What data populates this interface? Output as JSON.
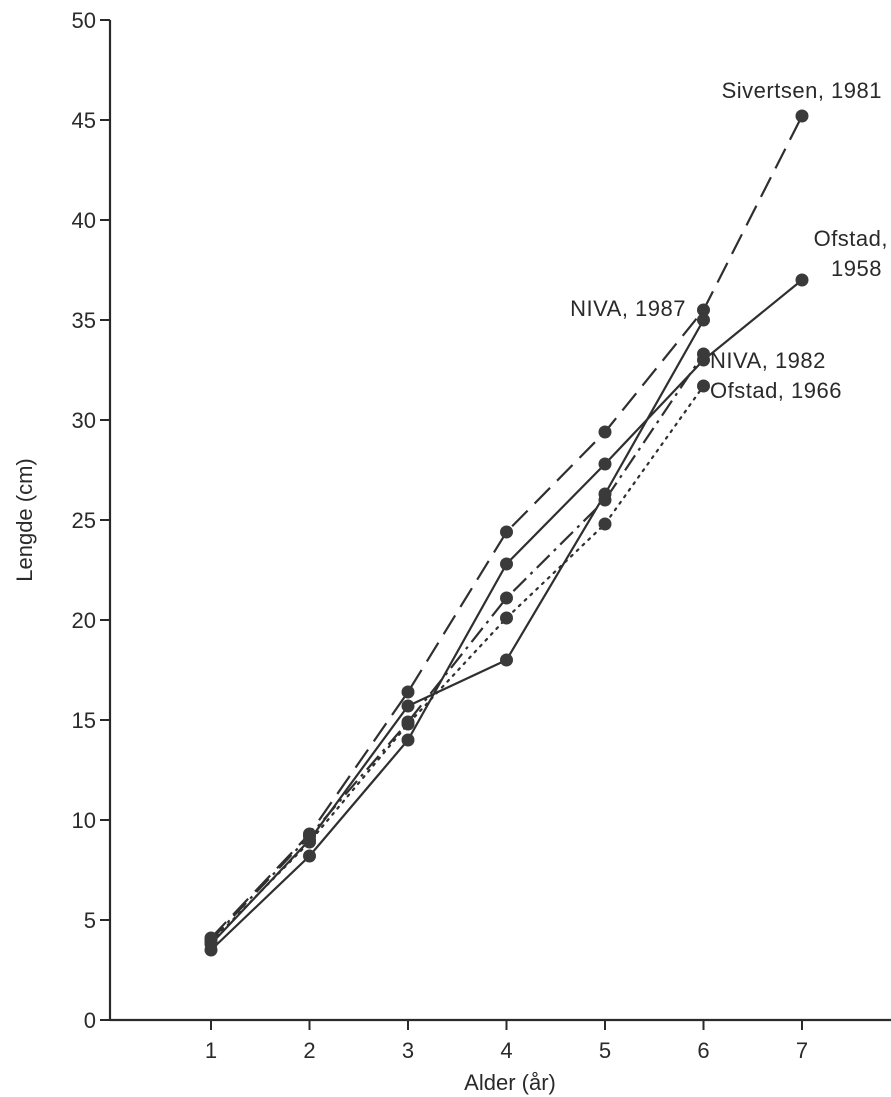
{
  "chart_data": {
    "type": "line",
    "xlabel": "Alder (år)",
    "ylabel": "Lengde (cm)",
    "xlim": [
      0,
      7.8
    ],
    "ylim": [
      0,
      50
    ],
    "x_ticks": [
      "1",
      "2",
      "3",
      "4",
      "5",
      "6",
      "7"
    ],
    "y_ticks": [
      "0",
      "5",
      "10",
      "15",
      "20",
      "25",
      "30",
      "35",
      "40",
      "45",
      "50"
    ],
    "grid": false,
    "legend": "none (series labelled directly at line ends)",
    "series": [
      {
        "name": "Sivertsen, 1981",
        "style": "dashed",
        "x": [
          1,
          2,
          3,
          4,
          5,
          6,
          7
        ],
        "y": [
          4.1,
          9.3,
          16.4,
          24.4,
          29.4,
          35.5,
          45.2
        ]
      },
      {
        "name": "Ofstad, 1958",
        "style": "solid",
        "x": [
          1,
          2,
          3,
          4,
          5,
          6,
          7
        ],
        "y": [
          3.5,
          8.2,
          14.0,
          22.8,
          27.8,
          33.0,
          37.0
        ]
      },
      {
        "name": "NIVA, 1987",
        "style": "solid",
        "x": [
          1,
          2,
          3,
          4,
          5,
          6
        ],
        "y": [
          3.8,
          9.0,
          15.7,
          18.0,
          26.3,
          35.0
        ]
      },
      {
        "name": "NIVA, 1982",
        "style": "dash-dot",
        "x": [
          1,
          2,
          3,
          4,
          5,
          6
        ],
        "y": [
          4.0,
          9.2,
          14.9,
          21.1,
          26.0,
          33.3
        ]
      },
      {
        "name": "Ofstad, 1966",
        "style": "dotted",
        "x": [
          1,
          2,
          3,
          4,
          5,
          6
        ],
        "y": [
          3.9,
          8.9,
          14.8,
          20.1,
          24.8,
          31.7
        ]
      }
    ]
  }
}
